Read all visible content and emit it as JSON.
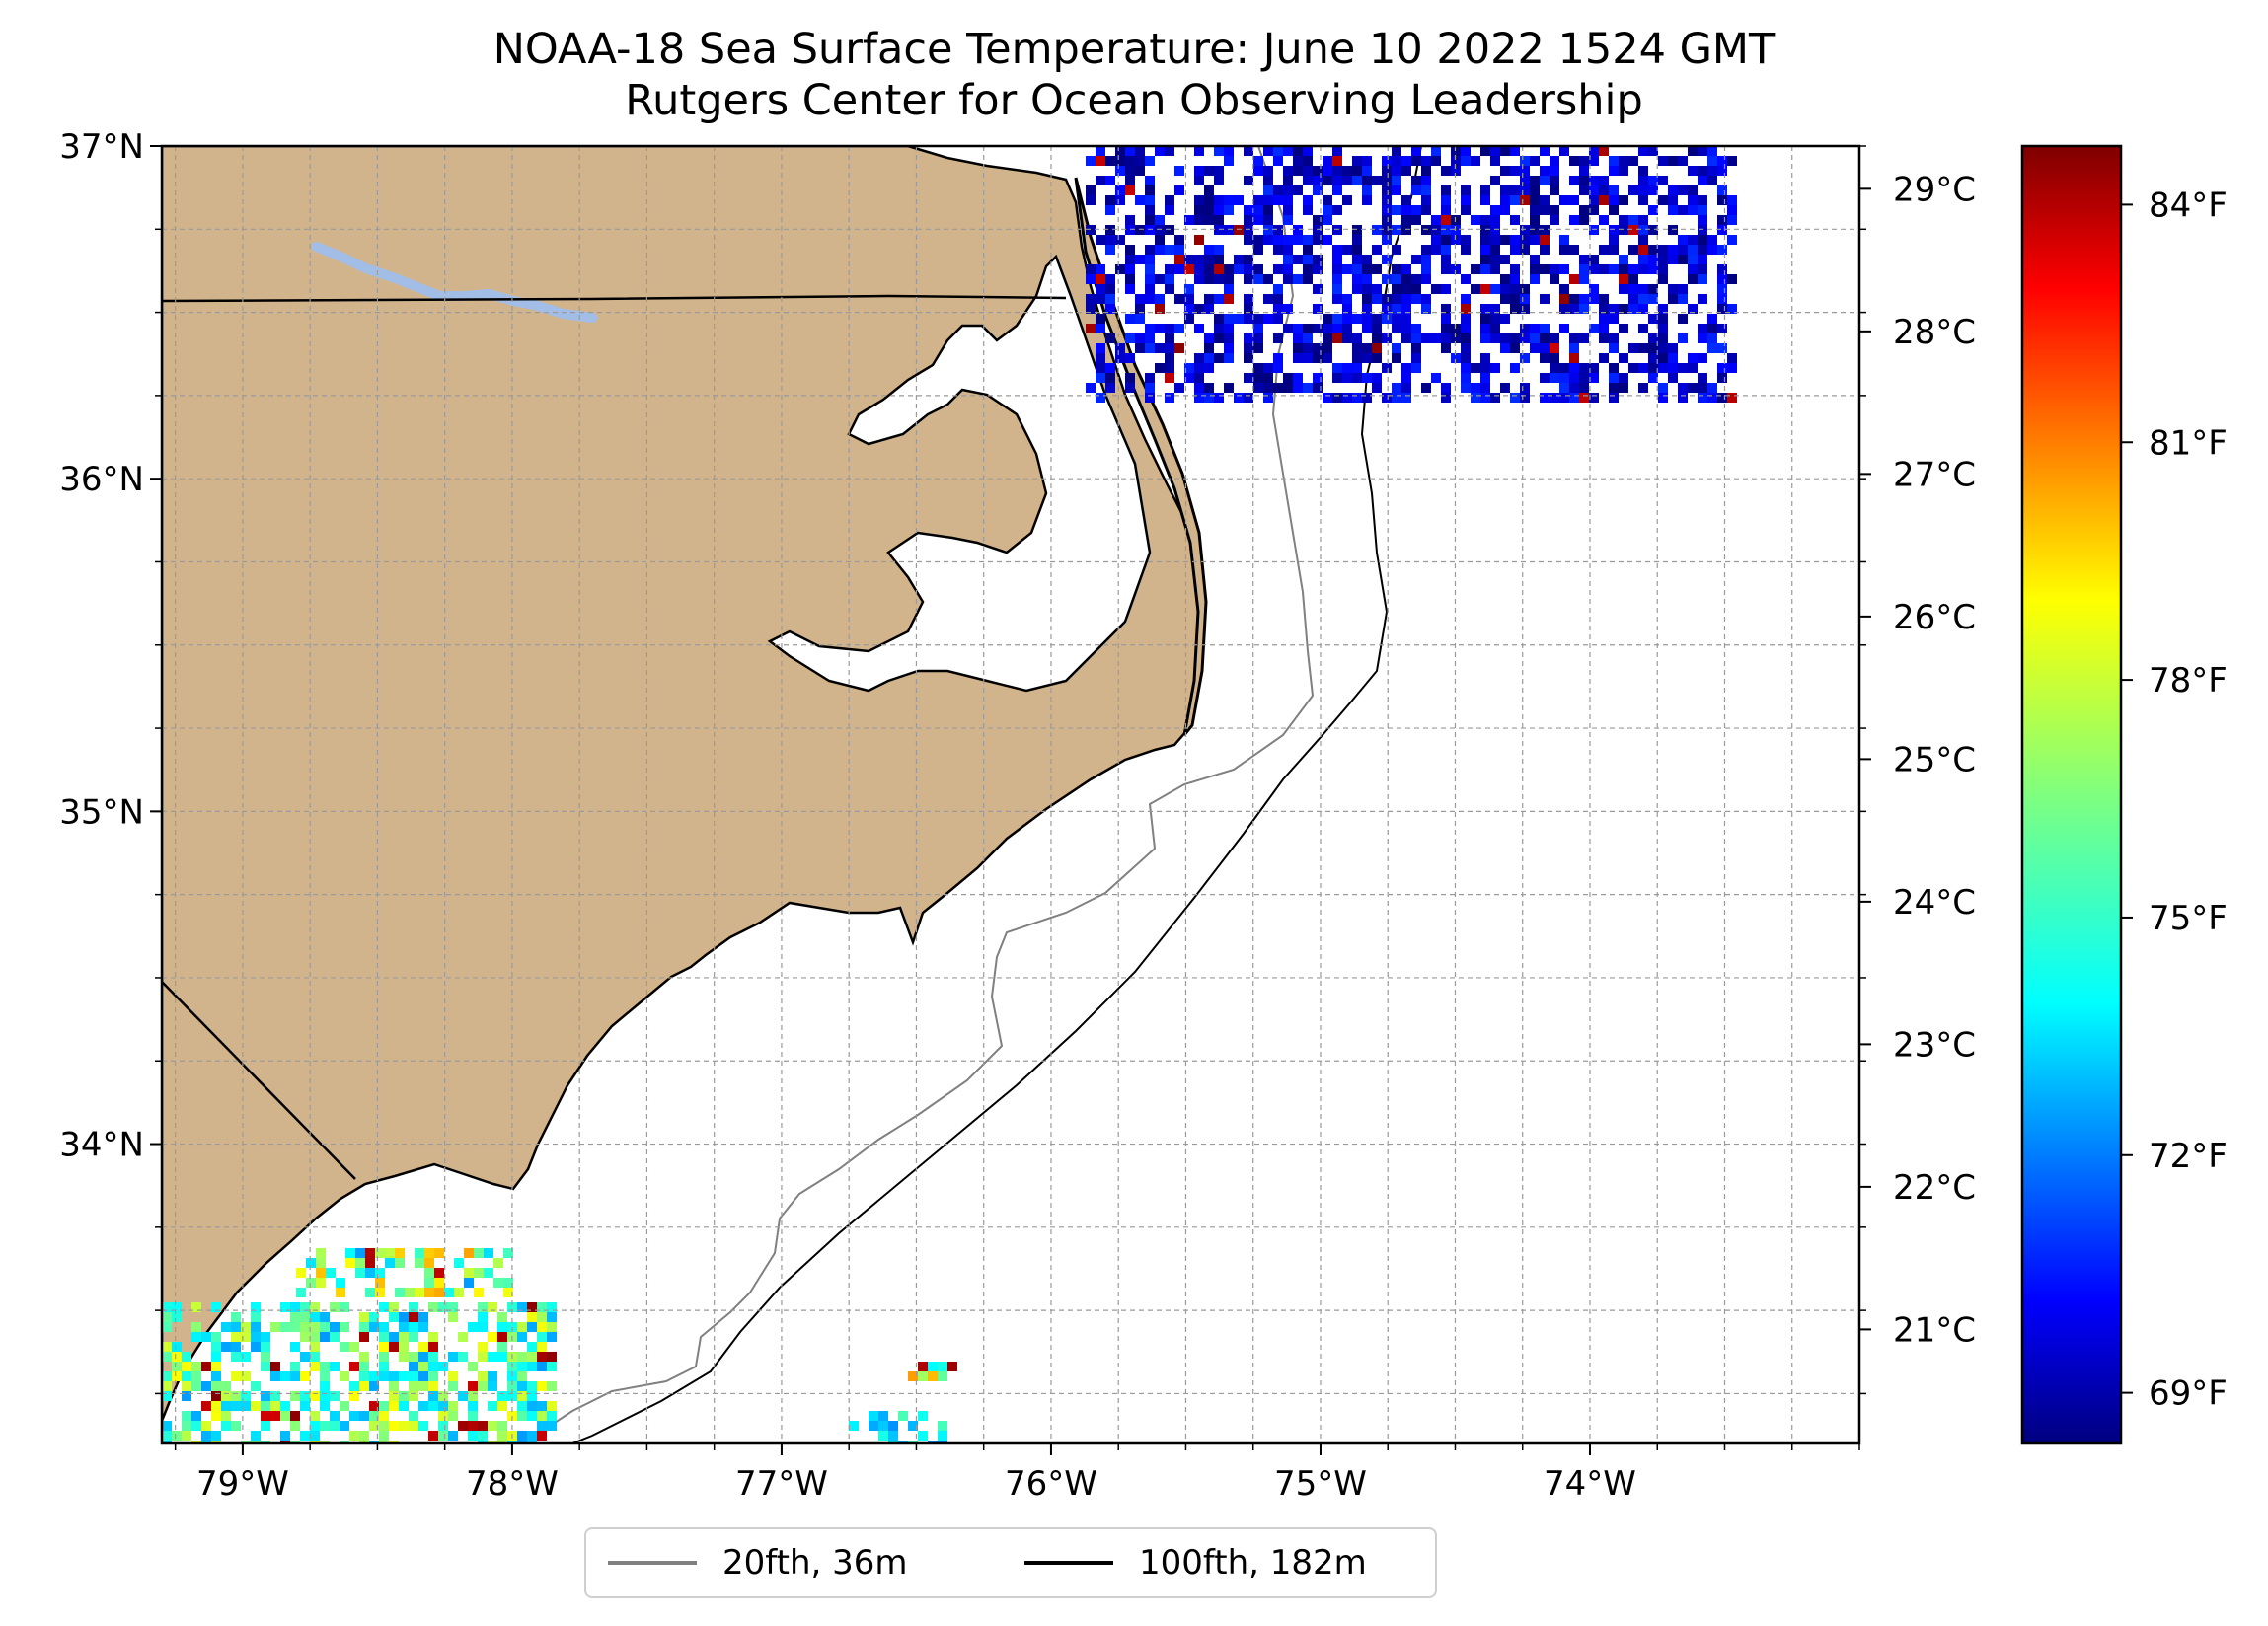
{
  "title": {
    "line1": "NOAA-18 Sea Surface Temperature: June 10 2022 1524 GMT",
    "line2": "Rutgers Center for Ocean Observing Leadership"
  },
  "map": {
    "projection": "PlateCarree",
    "lon_range": [
      -79.3,
      -73.0
    ],
    "lat_range": [
      33.1,
      37.0
    ],
    "lat_ticks": [
      {
        "value": 37,
        "label": "37°N"
      },
      {
        "value": 36,
        "label": "36°N"
      },
      {
        "value": 35,
        "label": "35°N"
      },
      {
        "value": 34,
        "label": "34°N"
      }
    ],
    "lon_ticks": [
      {
        "value": -79,
        "label": "79°W"
      },
      {
        "value": -78,
        "label": "78°W"
      },
      {
        "value": -77,
        "label": "77°W"
      },
      {
        "value": -76,
        "label": "76°W"
      },
      {
        "value": -75,
        "label": "75°W"
      },
      {
        "value": -74,
        "label": "74°W"
      }
    ],
    "gridlines": true,
    "grid_spacing_deg": 0.25,
    "land_color": "#D2B48C",
    "lake_color": "#A2BEE6",
    "ocean_color": "#FFFFFF",
    "coast_color": "#000000",
    "sst_colormap": "jet"
  },
  "colorbar": {
    "orientation": "vertical",
    "celsius_range": [
      20.2,
      29.3
    ],
    "celsius_ticks": [
      {
        "value": 29,
        "label": "29°C"
      },
      {
        "value": 28,
        "label": "28°C"
      },
      {
        "value": 27,
        "label": "27°C"
      },
      {
        "value": 26,
        "label": "26°C"
      },
      {
        "value": 25,
        "label": "25°C"
      },
      {
        "value": 24,
        "label": "24°C"
      },
      {
        "value": 23,
        "label": "23°C"
      },
      {
        "value": 22,
        "label": "22°C"
      },
      {
        "value": 21,
        "label": "21°C"
      }
    ],
    "fahrenheit_ticks": [
      {
        "value": 84,
        "label": "84°F"
      },
      {
        "value": 81,
        "label": "81°F"
      },
      {
        "value": 78,
        "label": "78°F"
      },
      {
        "value": 75,
        "label": "75°F"
      },
      {
        "value": 72,
        "label": "72°F"
      },
      {
        "value": 69,
        "label": "69°F"
      }
    ]
  },
  "legend": {
    "placement": "bottom-center",
    "items": [
      {
        "label": "20fth, 36m",
        "color": "#808080"
      },
      {
        "label": "100fth, 182m",
        "color": "#000000"
      }
    ]
  }
}
